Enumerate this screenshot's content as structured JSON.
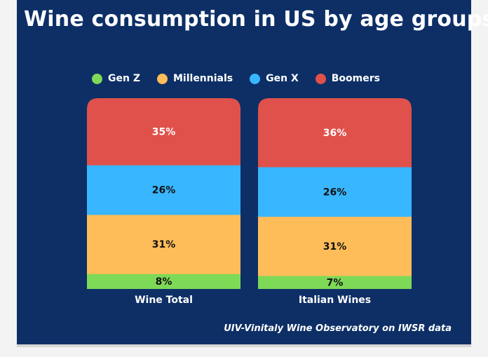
{
  "chart_data": {
    "type": "bar",
    "stacked": true,
    "normalized": true,
    "title": "Wine consumption in US by age groups",
    "categories": [
      "Wine Total",
      "Italian Wines"
    ],
    "series": [
      {
        "name": "Gen Z",
        "color": "#7ed957",
        "values": [
          8,
          7
        ],
        "labels": [
          "8%",
          "7%"
        ]
      },
      {
        "name": "Millennials",
        "color": "#ffbd59",
        "values": [
          31,
          31
        ],
        "labels": [
          "31%",
          "31%"
        ]
      },
      {
        "name": "Gen X",
        "color": "#38b6ff",
        "values": [
          26,
          26
        ],
        "labels": [
          "26%",
          "26%"
        ]
      },
      {
        "name": "Boomers",
        "color": "#e0514b",
        "values": [
          35,
          36
        ],
        "labels": [
          "35%",
          "36%"
        ]
      }
    ],
    "legend_position": "top",
    "grid": false,
    "source": "UIV-Vinitaly Wine Observatory on IWSR data"
  },
  "colors": {
    "background": "#0d2f66",
    "text": "#ffffff"
  }
}
